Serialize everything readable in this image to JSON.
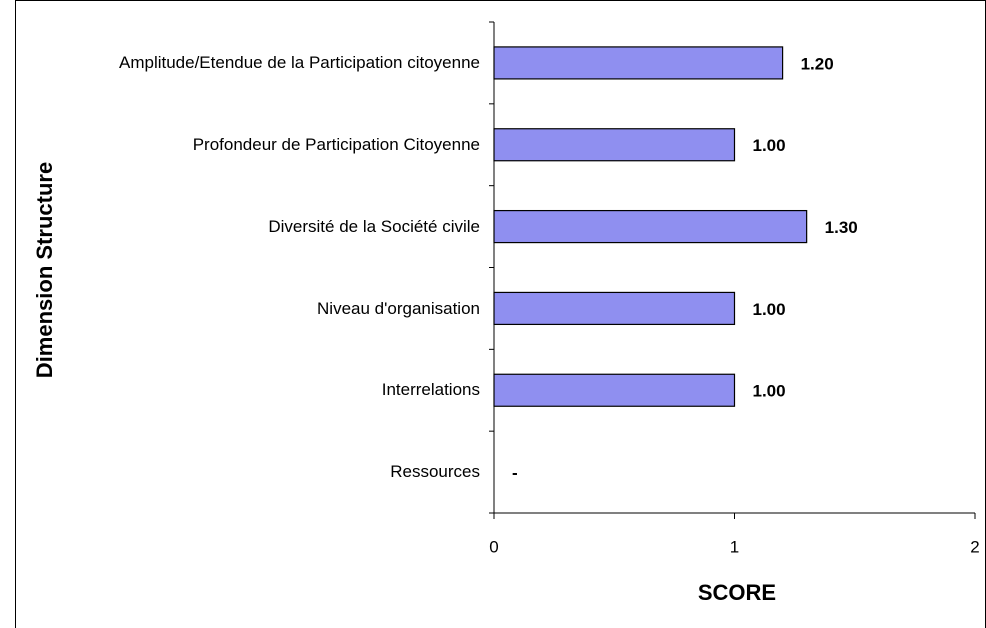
{
  "chart_data": {
    "type": "barh",
    "categories": [
      "Amplitude/Etendue de la Participation citoyenne",
      "Profondeur de Participation Citoyenne",
      "Diversité de la Société civile",
      "Niveau d'organisation",
      "Interrelations",
      "Ressources"
    ],
    "values": [
      1.2,
      1.0,
      1.3,
      1.0,
      1.0,
      0
    ],
    "value_labels": [
      "1.20",
      "1.00",
      "1.30",
      "1.00",
      "1.00",
      "-"
    ],
    "color": "#8f8ff0",
    "xlim": [
      0,
      2
    ],
    "xticks": [
      0,
      1,
      2
    ],
    "xlabel": "SCORE",
    "ylabel": "Dimension Structure"
  }
}
